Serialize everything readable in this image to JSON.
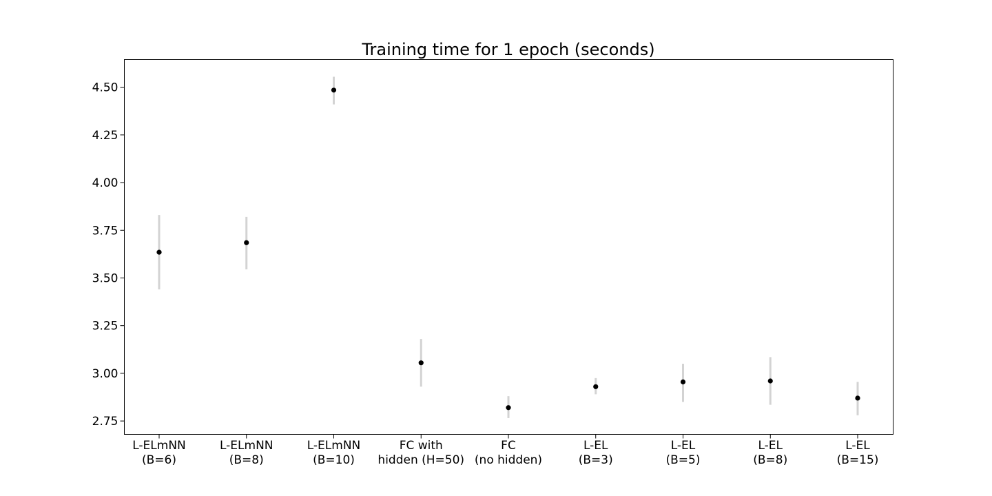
{
  "chart_data": {
    "type": "scatter",
    "title": "Training time for 1 epoch (seconds)",
    "xlabel": "",
    "ylabel": "",
    "categories": [
      [
        "L-ELmNN",
        "(B=6)"
      ],
      [
        "L-ELmNN",
        "(B=8)"
      ],
      [
        "L-ELmNN",
        "(B=10)"
      ],
      [
        "FC with",
        "hidden (H=50)"
      ],
      [
        "FC",
        "(no hidden)"
      ],
      [
        "L-EL",
        "(B=3)"
      ],
      [
        "L-EL",
        "(B=5)"
      ],
      [
        "L-EL",
        "(B=8)"
      ],
      [
        "L-EL",
        "(B=15)"
      ]
    ],
    "values": [
      3.635,
      3.685,
      4.485,
      3.055,
      2.82,
      2.93,
      2.955,
      2.96,
      2.87
    ],
    "error_low": [
      3.44,
      3.545,
      4.41,
      2.93,
      2.765,
      2.89,
      2.85,
      2.835,
      2.78
    ],
    "error_high": [
      3.83,
      3.82,
      4.555,
      3.18,
      2.88,
      2.975,
      3.05,
      3.085,
      2.955
    ],
    "ylim": [
      2.68,
      4.645
    ],
    "yticks": [
      2.75,
      3.0,
      3.25,
      3.5,
      3.75,
      4.0,
      4.25,
      4.5
    ],
    "ytick_labels": [
      "2.75",
      "3.00",
      "3.25",
      "3.50",
      "3.75",
      "4.00",
      "4.25",
      "4.50"
    ],
    "grid": false,
    "colors": {
      "point": "#000000",
      "error_bar": "#d3d3d3"
    }
  }
}
